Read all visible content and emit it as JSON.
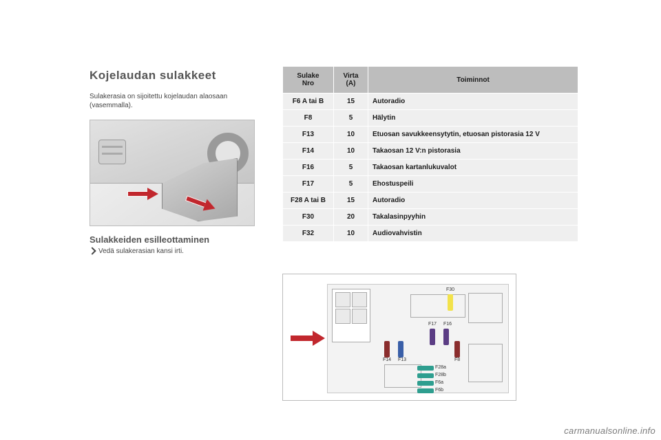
{
  "section_title": "Kojelaudan sulakkeet",
  "body_text": "Sulakerasia on sijoitettu kojelaudan alaosaan (vasemmalla).",
  "sub_title": "Sulakkeiden esilleottaminen",
  "step_text": "Vedä sulakerasian kansi irti.",
  "table": {
    "headers": {
      "col1": "Sulake\nNro",
      "col2": "Virta\n(A)",
      "col3": "Toiminnot"
    },
    "header_bg": "#bdbdbd",
    "row_bg": "#efefef",
    "font_size": 10,
    "rows": [
      {
        "nro": "F6 A tai B",
        "virta": "15",
        "fn": "Autoradio"
      },
      {
        "nro": "F8",
        "virta": "5",
        "fn": "Hälytin"
      },
      {
        "nro": "F13",
        "virta": "10",
        "fn": "Etuosan savukkeensytytin, etuosan pistorasia 12 V"
      },
      {
        "nro": "F14",
        "virta": "10",
        "fn": "Takaosan 12 V:n pistorasia"
      },
      {
        "nro": "F16",
        "virta": "5",
        "fn": "Takaosan kartanlukuvalot"
      },
      {
        "nro": "F17",
        "virta": "5",
        "fn": "Ehostuspeili"
      },
      {
        "nro": "F28 A tai B",
        "virta": "15",
        "fn": "Autoradio"
      },
      {
        "nro": "F30",
        "virta": "20",
        "fn": "Takalasinpyyhin"
      },
      {
        "nro": "F32",
        "virta": "10",
        "fn": "Audiovahvistin"
      }
    ]
  },
  "diagram": {
    "arrow_color": "#c1272d",
    "fuse_labels": [
      "F30",
      "F17",
      "F16",
      "F14",
      "F13",
      "F8",
      "F28a",
      "F28b",
      "F6a",
      "F6b"
    ],
    "fuse_colors": {
      "F30": "#f2e24b",
      "F17": "#5b3d84",
      "F16": "#5b3d84",
      "F14": "#8a2d2d",
      "F13": "#3a5fa8",
      "F8": "#8a2d2d",
      "F28a": "#2e9e8f",
      "F28b": "#2e9e8f",
      "F6a": "#2e9e8f",
      "F6b": "#2e9e8f"
    }
  },
  "watermark": "carmanualsonline.info"
}
